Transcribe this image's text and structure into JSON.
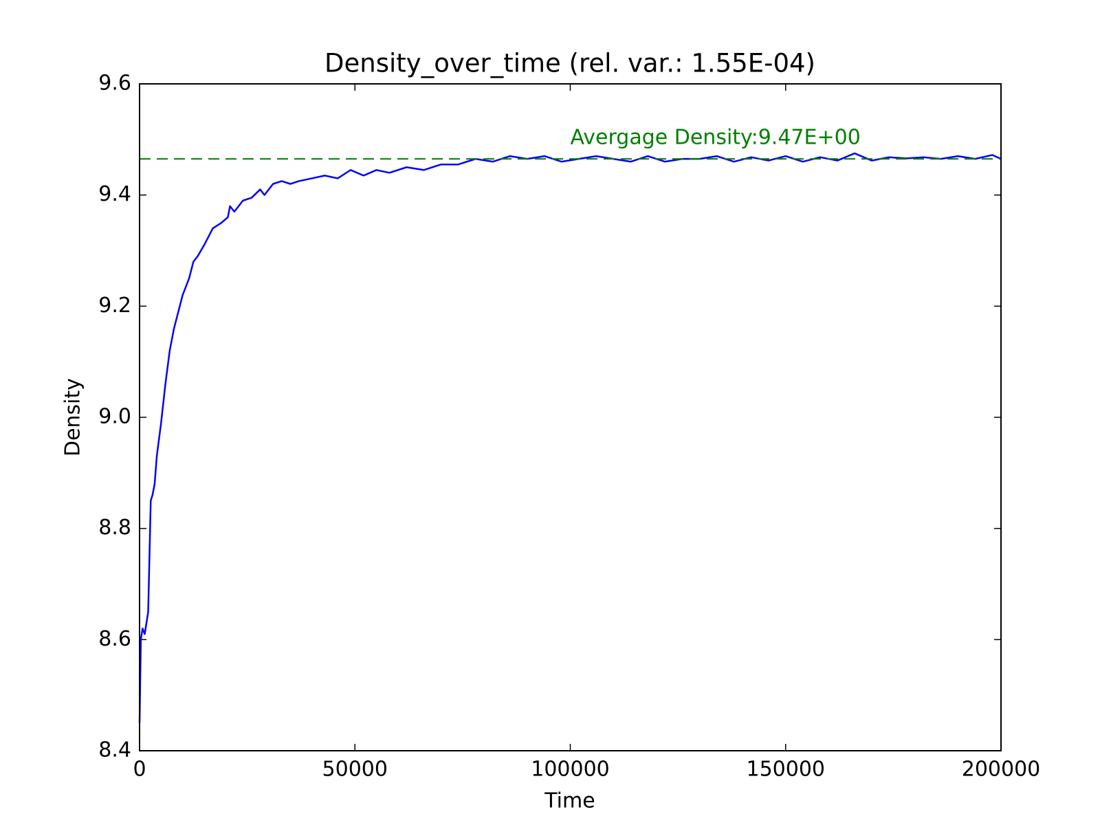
{
  "chart_data": {
    "type": "line",
    "title": "Density_over_time (rel. var.: 1.55E-04)",
    "x_label": "Time",
    "y_label": "Density",
    "x": [
      0,
      300,
      700,
      1200,
      2000,
      2600,
      3000,
      3500,
      4000,
      5000,
      6000,
      7000,
      8000,
      9000,
      10000,
      11500,
      12500,
      13500,
      15000,
      17000,
      19000,
      20500,
      21000,
      22000,
      24000,
      26000,
      28000,
      29000,
      31000,
      33000,
      35000,
      37000,
      40000,
      43000,
      46000,
      49000,
      52000,
      55000,
      58000,
      62000,
      66000,
      70000,
      74000,
      78000,
      82000,
      86000,
      90000,
      94000,
      98000,
      102000,
      106000,
      110000,
      114000,
      118000,
      122000,
      126000,
      130000,
      134000,
      138000,
      142000,
      146000,
      150000,
      154000,
      158000,
      162000,
      166000,
      170000,
      174000,
      178000,
      182000,
      186000,
      190000,
      194000,
      198000,
      200000
    ],
    "values": [
      8.45,
      8.6,
      8.62,
      8.61,
      8.65,
      8.85,
      8.86,
      8.88,
      8.93,
      8.99,
      9.06,
      9.12,
      9.16,
      9.19,
      9.22,
      9.25,
      9.28,
      9.29,
      9.31,
      9.34,
      9.35,
      9.36,
      9.38,
      9.37,
      9.39,
      9.395,
      9.41,
      9.4,
      9.42,
      9.425,
      9.42,
      9.425,
      9.43,
      9.435,
      9.43,
      9.445,
      9.435,
      9.445,
      9.44,
      9.45,
      9.445,
      9.455,
      9.455,
      9.465,
      9.46,
      9.47,
      9.465,
      9.47,
      9.46,
      9.465,
      9.47,
      9.465,
      9.46,
      9.47,
      9.46,
      9.465,
      9.465,
      9.47,
      9.46,
      9.468,
      9.462,
      9.47,
      9.46,
      9.468,
      9.462,
      9.475,
      9.462,
      9.468,
      9.466,
      9.468,
      9.465,
      9.47,
      9.465,
      9.472,
      9.465
    ],
    "color": "#0000ff",
    "reference_line": {
      "value": 9.465,
      "color": "#008000",
      "label": "Avergage Density:9.47E+00"
    },
    "xlim": [
      0,
      200000
    ],
    "ylim": [
      8.4,
      9.6
    ],
    "xticks": [
      0,
      50000,
      100000,
      150000,
      200000
    ],
    "yticks": [
      8.4,
      8.6,
      8.8,
      {
        "value": 9,
        "label": "9.0"
      },
      9.2,
      9.4,
      9.6
    ],
    "grid": false
  }
}
